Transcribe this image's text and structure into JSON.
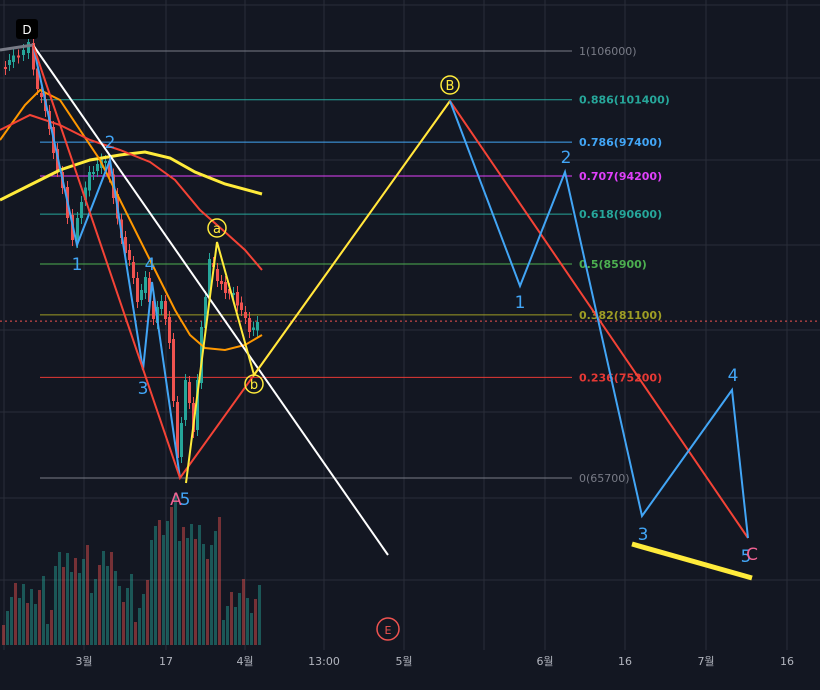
{
  "chart_data": {
    "type": "line",
    "title": "",
    "xlabel": "",
    "ylabel": "",
    "x_ticks": [
      "3월",
      "17",
      "4월",
      "13:00",
      "5월",
      "6월",
      "16",
      "7월",
      "16"
    ],
    "fib_levels": [
      {
        "label": "1(106000)",
        "value": 106000,
        "color": "#787b86"
      },
      {
        "label": "0.886(101400)",
        "value": 101400,
        "color": "#26a69a"
      },
      {
        "label": "0.786(97400)",
        "value": 97400,
        "color": "#42a5f5"
      },
      {
        "label": "0.707(94200)",
        "value": 94200,
        "color": "#e040fb"
      },
      {
        "label": "0.618(90600)",
        "value": 90600,
        "color": "#26a69a"
      },
      {
        "label": "0.5(85900)",
        "value": 85900,
        "color": "#4caf50"
      },
      {
        "label": "0.382(81100)",
        "value": 81100,
        "color": "#9e9d24"
      },
      {
        "label": "0.236(75200)",
        "value": 75200,
        "color": "#e53935"
      },
      {
        "label": "0(65700)",
        "value": 65700,
        "color": "#787b86"
      }
    ],
    "current_price_level": 80500,
    "top_marker": "D",
    "bottom_marker": "E",
    "corrective_points": [
      {
        "label": "A",
        "color": "#f06292"
      },
      {
        "label": "a",
        "color": "#ffeb3b"
      },
      {
        "label": "b",
        "color": "#ffeb3b"
      },
      {
        "label": "B",
        "color": "#ffeb3b"
      },
      {
        "label": "C",
        "color": "#f06292"
      }
    ],
    "impulse_labels_1": [
      "1",
      "2",
      "3",
      "4",
      "5"
    ],
    "impulse_labels_2": [
      "1",
      "2",
      "3",
      "4",
      "5"
    ],
    "colors": {
      "background": "#131722",
      "grid": "#2a2e39",
      "candle_up": "#26a69a",
      "candle_down": "#ef5350",
      "wave_blue": "#42a5f5",
      "wave_red": "#f44336",
      "wave_yellow": "#ffeb3b",
      "ma_orange": "#ff9800",
      "trendline": "#ffffff"
    }
  }
}
